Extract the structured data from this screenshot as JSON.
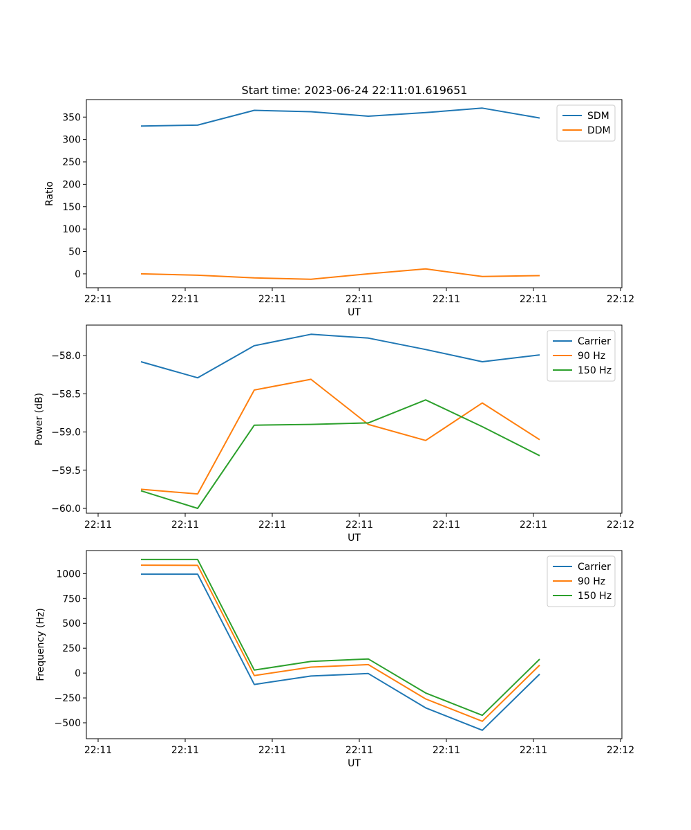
{
  "figure": {
    "title": "Start time: 2023-06-24 22:11:01.619651"
  },
  "chart_data": [
    {
      "type": "line",
      "title": "Start time: 2023-06-24 22:11:01.619651",
      "xlabel": "UT",
      "ylabel": "Ratio",
      "x_tick_labels": [
        "22:11",
        "22:11",
        "22:11",
        "22:11",
        "22:11",
        "22:11",
        "22:12"
      ],
      "y_ticks": [
        0,
        50,
        100,
        150,
        200,
        250,
        300,
        350
      ],
      "y_tick_labels": [
        "0",
        "50",
        "100",
        "150",
        "200",
        "250",
        "300",
        "350"
      ],
      "ylim": [
        -31,
        389
      ],
      "legend_position": "top-right",
      "grid": false,
      "series": [
        {
          "name": "SDM",
          "color": "#1f77b4",
          "values": [
            330,
            332,
            365,
            362,
            352,
            360,
            370,
            348
          ]
        },
        {
          "name": "DDM",
          "color": "#ff7f0e",
          "values": [
            0,
            -3,
            -9,
            -12,
            0,
            11,
            -6,
            -4
          ]
        }
      ]
    },
    {
      "type": "line",
      "xlabel": "UT",
      "ylabel": "Power (dB)",
      "x_tick_labels": [
        "22:11",
        "22:11",
        "22:11",
        "22:11",
        "22:11",
        "22:11",
        "22:12"
      ],
      "y_ticks": [
        -60.0,
        -59.5,
        -59.0,
        -58.5,
        -58.0
      ],
      "y_tick_labels": [
        "−60.0",
        "−59.5",
        "−59.0",
        "−58.5",
        "−58.0"
      ],
      "ylim": [
        -60.063,
        -57.6
      ],
      "legend_position": "top-right",
      "grid": false,
      "series": [
        {
          "name": "Carrier",
          "color": "#1f77b4",
          "values": [
            -58.08,
            -58.29,
            -57.87,
            -57.72,
            -57.77,
            -57.92,
            -58.08,
            -57.99
          ]
        },
        {
          "name": "90 Hz",
          "color": "#ff7f0e",
          "values": [
            -59.75,
            -59.81,
            -58.45,
            -58.31,
            -58.9,
            -59.11,
            -58.62,
            -59.1
          ]
        },
        {
          "name": "150 Hz",
          "color": "#2ca02c",
          "values": [
            -59.77,
            -60.0,
            -58.91,
            -58.9,
            -58.88,
            -58.58,
            -58.93,
            -59.31
          ]
        }
      ]
    },
    {
      "type": "line",
      "xlabel": "UT",
      "ylabel": "Frequency (Hz)",
      "x_tick_labels": [
        "22:11",
        "22:11",
        "22:11",
        "22:11",
        "22:11",
        "22:11",
        "22:12"
      ],
      "y_ticks": [
        -500,
        -250,
        0,
        250,
        500,
        750,
        1000
      ],
      "y_tick_labels": [
        "−500",
        "−250",
        "0",
        "250",
        "500",
        "750",
        "1000"
      ],
      "ylim": [
        -660,
        1232
      ],
      "legend_position": "top-right",
      "grid": false,
      "series": [
        {
          "name": "Carrier",
          "color": "#1f77b4",
          "values": [
            995,
            995,
            -115,
            -30,
            -5,
            -350,
            -575,
            -10
          ]
        },
        {
          "name": "90 Hz",
          "color": "#ff7f0e",
          "values": [
            1085,
            1083,
            -25,
            60,
            85,
            -260,
            -485,
            80
          ]
        },
        {
          "name": "150 Hz",
          "color": "#2ca02c",
          "values": [
            1142,
            1142,
            30,
            118,
            142,
            -200,
            -425,
            140
          ]
        }
      ]
    }
  ]
}
